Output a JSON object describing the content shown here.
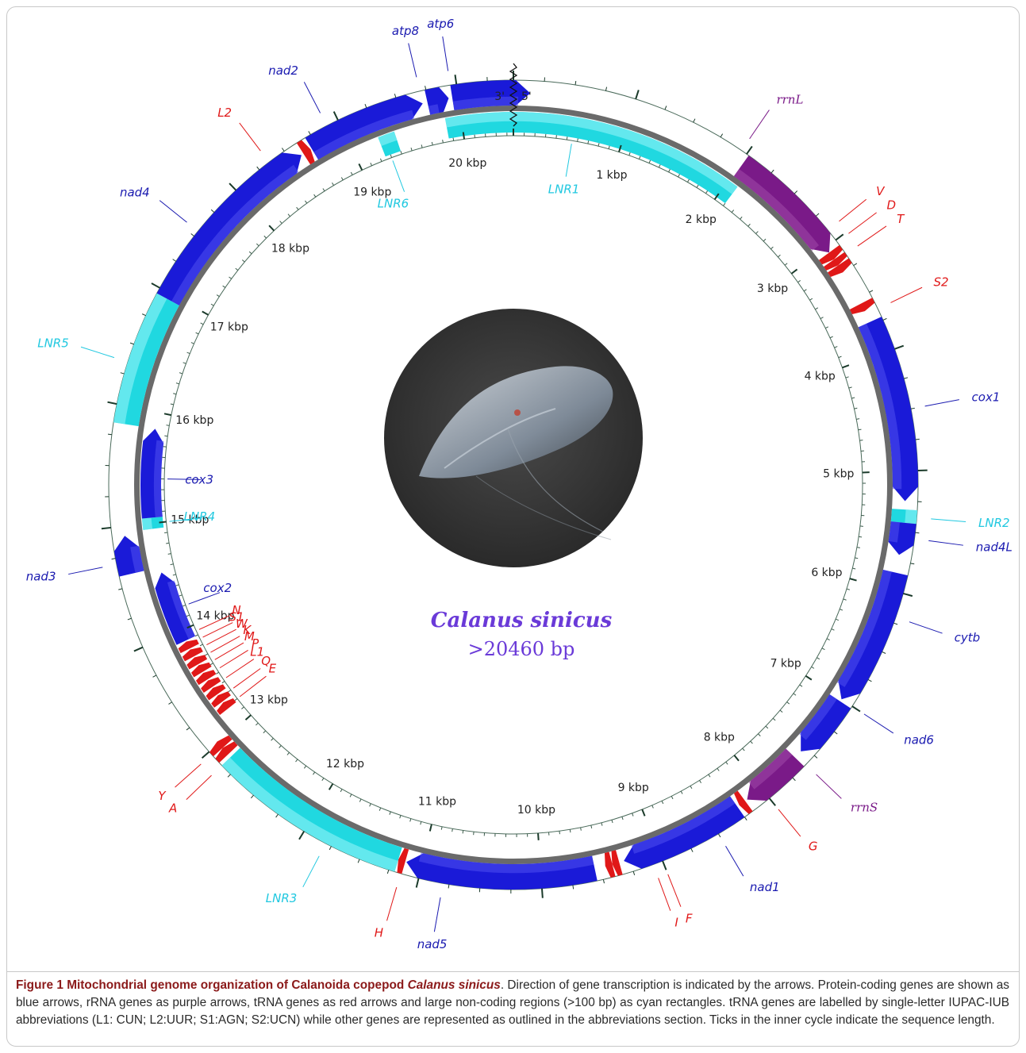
{
  "diagram": {
    "species": "Calanus sinicus",
    "size_label": ">20460 bp",
    "end_3": "3'",
    "end_5": "5'",
    "kbp_marks": [
      {
        "kbp": 1,
        "label": "1 kbp"
      },
      {
        "kbp": 2,
        "label": "2 kbp"
      },
      {
        "kbp": 3,
        "label": "3 kbp"
      },
      {
        "kbp": 4,
        "label": "4 kbp"
      },
      {
        "kbp": 5,
        "label": "5 kbp"
      },
      {
        "kbp": 6,
        "label": "6 kbp"
      },
      {
        "kbp": 7,
        "label": "7 kbp"
      },
      {
        "kbp": 8,
        "label": "8 kbp"
      },
      {
        "kbp": 9,
        "label": "9 kbp"
      },
      {
        "kbp": 10,
        "label": "10 kbp"
      },
      {
        "kbp": 11,
        "label": "11 kbp"
      },
      {
        "kbp": 12,
        "label": "12 kbp"
      },
      {
        "kbp": 13,
        "label": "13 kbp"
      },
      {
        "kbp": 14,
        "label": "14 kbp"
      },
      {
        "kbp": 15,
        "label": "15 kbp"
      },
      {
        "kbp": 16,
        "label": "16 kbp"
      },
      {
        "kbp": 17,
        "label": "17 kbp"
      },
      {
        "kbp": 18,
        "label": "18 kbp"
      },
      {
        "kbp": 19,
        "label": "19 kbp"
      },
      {
        "kbp": 20,
        "label": "20 kbp"
      }
    ],
    "genes": [
      {
        "label": "LNR1",
        "type": "noncoding",
        "strand": "inner",
        "start": -0.6,
        "end": 2.1,
        "label_kbp": 0.55,
        "label_style": "plain"
      },
      {
        "label": "rrnL",
        "type": "rRNA",
        "strand": "outer",
        "start": 2.02,
        "end": 3.05,
        "label_kbp": 1.95,
        "label_style": "serif"
      },
      {
        "label": "V",
        "type": "tRNA",
        "strand": "outer",
        "start": 3.05,
        "end": 3.12,
        "label_kbp": 2.9,
        "label_style": "plain"
      },
      {
        "label": "D",
        "type": "tRNA",
        "strand": "outer",
        "start": 3.12,
        "end": 3.18,
        "label_kbp": 3.02,
        "label_style": "plain"
      },
      {
        "label": "T",
        "type": "tRNA",
        "strand": "outer",
        "start": 3.18,
        "end": 3.25,
        "label_kbp": 3.14,
        "label_style": "plain"
      },
      {
        "label": "S2",
        "type": "tRNA",
        "strand": "outer",
        "start": 3.55,
        "end": 3.62,
        "label_kbp": 3.65,
        "label_style": "plain"
      },
      {
        "label": "cox1",
        "type": "protein",
        "strand": "outer",
        "start": 3.72,
        "end": 5.25,
        "label_kbp": 4.5,
        "label_style": "plain"
      },
      {
        "label": "LNR2",
        "type": "noncoding",
        "strand": "outer",
        "start": 5.32,
        "end": 5.43,
        "label_kbp": 5.38,
        "label_style": "plain"
      },
      {
        "label": "nad4L",
        "type": "protein",
        "strand": "outer",
        "start": 5.43,
        "end": 5.7,
        "label_kbp": 5.55,
        "label_style": "plain"
      },
      {
        "label": "cytb",
        "type": "protein",
        "strand": "outer",
        "start": 5.85,
        "end": 7.0,
        "label_kbp": 6.2,
        "label_style": "plain"
      },
      {
        "label": "nad6",
        "type": "protein",
        "strand": "outer",
        "start": 7.02,
        "end": 7.55,
        "label_kbp": 7.0,
        "label_style": "plain"
      },
      {
        "label": "rrnS",
        "type": "rRNA",
        "strand": "outer",
        "start": 7.62,
        "end": 8.15,
        "label_kbp": 7.6,
        "label_style": "serif"
      },
      {
        "label": "G",
        "type": "tRNA",
        "strand": "outer",
        "start": 8.17,
        "end": 8.23,
        "label_kbp": 8.0,
        "label_style": "plain"
      },
      {
        "label": "nad1",
        "type": "protein",
        "strand": "outer",
        "start": 8.25,
        "end": 9.3,
        "label_kbp": 8.5,
        "label_style": "plain"
      },
      {
        "label": "F",
        "type": "tRNA",
        "strand": "outer",
        "start": 9.34,
        "end": 9.4,
        "label_kbp": 9.0,
        "label_style": "plain"
      },
      {
        "label": "I",
        "type": "tRNA",
        "strand": "outer",
        "start": 9.4,
        "end": 9.46,
        "label_kbp": 9.08,
        "label_style": "plain"
      },
      {
        "label": "nad5",
        "type": "protein",
        "strand": "outer",
        "start": 9.55,
        "end": 11.13,
        "label_kbp": 10.8,
        "label_style": "plain"
      },
      {
        "label": "H",
        "type": "tRNA",
        "strand": "outer",
        "start": 11.14,
        "end": 11.2,
        "label_kbp": 11.15,
        "label_style": "plain"
      },
      {
        "label": "LNR3",
        "type": "noncoding",
        "strand": "outer",
        "start": 11.2,
        "end": 12.85,
        "label_kbp": 11.8,
        "label_style": "plain"
      },
      {
        "label": "A",
        "type": "tRNA",
        "strand": "outer",
        "start": 12.88,
        "end": 12.95,
        "label_kbp": 12.85,
        "label_style": "plain"
      },
      {
        "label": "Y",
        "type": "tRNA",
        "strand": "outer",
        "start": 12.95,
        "end": 13.02,
        "label_kbp": 12.97,
        "label_style": "plain"
      },
      {
        "label": "E",
        "type": "tRNA",
        "strand": "inner",
        "start": 13.18,
        "end": 13.25,
        "label_kbp": 13.2,
        "label_style": "plain"
      },
      {
        "label": "Q",
        "type": "tRNA",
        "strand": "inner",
        "start": 13.26,
        "end": 13.33,
        "label_kbp": 13.3,
        "label_style": "plain"
      },
      {
        "label": "L1",
        "type": "tRNA",
        "strand": "inner",
        "start": 13.34,
        "end": 13.41,
        "label_kbp": 13.42,
        "label_style": "plain"
      },
      {
        "label": "P",
        "type": "tRNA",
        "strand": "inner",
        "start": 13.42,
        "end": 13.49,
        "label_kbp": 13.53,
        "label_style": "plain"
      },
      {
        "label": "M",
        "type": "tRNA",
        "strand": "inner",
        "start": 13.5,
        "end": 13.57,
        "label_kbp": 13.62,
        "label_style": "plain"
      },
      {
        "label": "K",
        "type": "tRNA",
        "strand": "inner",
        "start": 13.58,
        "end": 13.65,
        "label_kbp": 13.7,
        "label_style": "plain"
      },
      {
        "label": "W",
        "type": "tRNA",
        "strand": "inner",
        "start": 13.66,
        "end": 13.73,
        "label_kbp": 13.78,
        "label_style": "plain"
      },
      {
        "label": "S1",
        "type": "tRNA",
        "strand": "inner",
        "start": 13.74,
        "end": 13.81,
        "label_kbp": 13.86,
        "label_style": "plain"
      },
      {
        "label": "N",
        "type": "tRNA",
        "strand": "inner",
        "start": 13.82,
        "end": 13.89,
        "label_kbp": 13.94,
        "label_style": "plain"
      },
      {
        "label": "cox2",
        "type": "protein",
        "strand": "inner",
        "start": 13.9,
        "end": 14.55,
        "label_kbp": 14.2,
        "label_style": "plain"
      },
      {
        "label": "nad3",
        "type": "protein",
        "strand": "outer",
        "start": 14.6,
        "end": 14.92,
        "label_kbp": 14.7,
        "label_style": "plain"
      },
      {
        "label": "LNR4",
        "type": "noncoding",
        "strand": "inner",
        "start": 14.95,
        "end": 15.05,
        "label_kbp": 15.0,
        "label_style": "plain"
      },
      {
        "label": "cox3",
        "type": "protein",
        "strand": "inner",
        "start": 15.05,
        "end": 15.85,
        "label_kbp": 15.4,
        "label_style": "plain"
      },
      {
        "label": "LNR5",
        "type": "noncoding",
        "strand": "outer",
        "start": 15.85,
        "end": 16.95,
        "label_kbp": 16.35,
        "label_style": "plain"
      },
      {
        "label": "nad4",
        "type": "protein",
        "strand": "outer",
        "start": 16.95,
        "end": 18.6,
        "label_kbp": 17.55,
        "label_style": "plain"
      },
      {
        "label": "L2",
        "type": "tRNA",
        "strand": "outer",
        "start": 18.62,
        "end": 18.69,
        "label_kbp": 18.35,
        "label_style": "plain"
      },
      {
        "label": "nad2",
        "type": "protein",
        "strand": "outer",
        "start": 18.7,
        "end": 19.7,
        "label_kbp": 18.9,
        "label_style": "plain"
      },
      {
        "label": "LNR6",
        "type": "noncoding",
        "strand": "inner",
        "start": 19.25,
        "end": 19.4,
        "label_kbp": 19.3,
        "label_style": "plain"
      },
      {
        "label": "atp8",
        "type": "protein",
        "strand": "outer",
        "start": 19.74,
        "end": 19.92,
        "label_kbp": 19.7,
        "label_style": "plain"
      },
      {
        "label": "atp6",
        "type": "protein",
        "strand": "outer",
        "start": 19.95,
        "end": 20.6,
        "label_kbp": 19.95,
        "label_style": "plain"
      }
    ]
  },
  "caption": {
    "title": "Figure 1 Mitochondrial genome organization of Calanoida copepod ",
    "title_italic": "Calanus sinicus",
    "body": ". Direction of gene transcription is indicated by the arrows. Protein-coding genes are shown as blue arrows, rRNA genes as purple arrows, tRNA genes as red arrows and large non-coding regions (>100 bp) as cyan rectangles. tRNA genes are labelled by single-letter IUPAC-IUB abbreviations (L1: CUN; L2:UUR; S1:AGN; S2:UCN) while other genes are represented as outlined in the abbreviations section. Ticks in the inner cycle indicate the sequence length."
  },
  "colors": {
    "protein": "#1a1ad8",
    "protein_light": "#5050f0",
    "rRNA": "#7a1a88",
    "rRNA_light": "#a04aaa",
    "tRNA": "#e01818",
    "noncoding": "#20d8e0",
    "noncoding_light": "#80f0f4",
    "label_protein": "#1a1ab0",
    "label_rRNA": "#7a1a88",
    "label_tRNA": "#e01818",
    "label_noncoding": "#20c8e0",
    "species": "#6a3ad8"
  }
}
